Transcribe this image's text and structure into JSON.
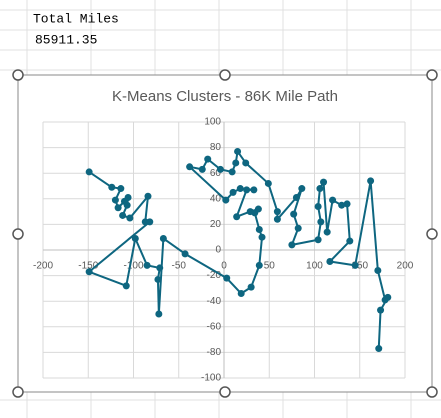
{
  "sheet": {
    "label": "Total Miles",
    "value": "85911.35"
  },
  "chart_data": {
    "type": "scatter",
    "title": "K-Means Clusters - 86K Mile Path",
    "lines": true,
    "grid": true,
    "series": [
      {
        "color": "#0e6680",
        "x": [
          -149,
          -124,
          -114,
          -120,
          -117,
          -110,
          -106,
          -107,
          -112,
          -104,
          -84,
          -87,
          -82,
          -149,
          -108,
          -98,
          -85,
          -71,
          -73,
          -72,
          -67,
          -43,
          3,
          19,
          30,
          39,
          42,
          39,
          34,
          38,
          29,
          14,
          25,
          33,
          18,
          10,
          2,
          -38,
          -24,
          -18,
          -4,
          9,
          13,
          15,
          24,
          49,
          59,
          59,
          80,
          86,
          77,
          82,
          75,
          104,
          107,
          104,
          106,
          110,
          114,
          120,
          130,
          136,
          139,
          117,
          145,
          162,
          170,
          178,
          181,
          173,
          171
        ],
        "values": [
          61,
          49,
          48,
          39,
          33,
          38,
          41,
          35,
          27,
          25,
          42,
          22,
          22,
          -17,
          -28,
          9,
          -12,
          -14,
          -23,
          -50,
          9,
          -3,
          -22,
          -34,
          -29,
          -12,
          10,
          16,
          29,
          32,
          30,
          26,
          47,
          47,
          48,
          45,
          39,
          65,
          63,
          71,
          63,
          61,
          68,
          77,
          68,
          52,
          30,
          24,
          41,
          48,
          28,
          17,
          4,
          8,
          22,
          34,
          48,
          53,
          14,
          39,
          35,
          36,
          7,
          -9,
          -12,
          54,
          -16,
          -39,
          -37,
          -47,
          -77
        ]
      }
    ],
    "xlim": [
      -200,
      200
    ],
    "xticks": [
      -200,
      -150,
      -100,
      -50,
      0,
      50,
      100,
      150,
      200
    ],
    "ylim": [
      -100,
      100
    ],
    "yticks": [
      -100,
      -80,
      -60,
      -40,
      -20,
      0,
      20,
      40,
      60,
      80,
      100
    ]
  }
}
